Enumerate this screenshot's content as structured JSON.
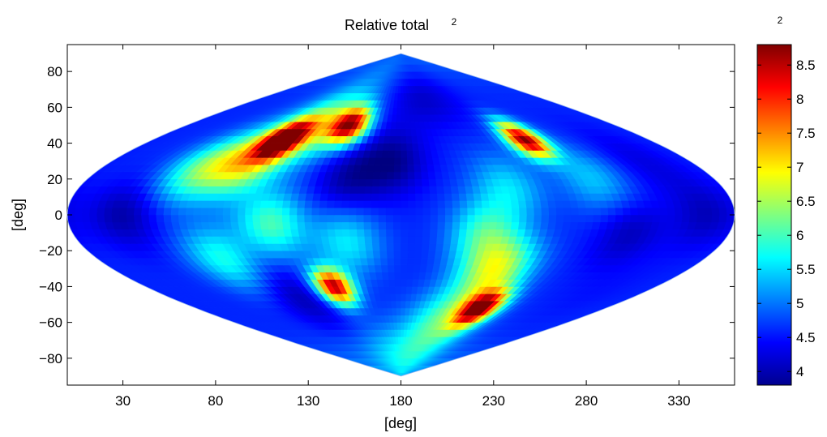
{
  "chart_data": {
    "type": "heatmap",
    "title": "Relative total",
    "title_superscript": "2",
    "colorbar_label": "2",
    "xlabel": "[deg]",
    "ylabel": "[deg]",
    "projection": "sinusoidal",
    "colormap": "jet",
    "xlim": [
      0,
      360
    ],
    "ylim": [
      -95,
      95
    ],
    "color_range": [
      3.8,
      8.8
    ],
    "xticks": [
      30,
      80,
      130,
      180,
      230,
      280,
      330
    ],
    "xtick_labels": [
      "30",
      "80",
      "130",
      "180",
      "230",
      "280",
      "330"
    ],
    "yticks": [
      80,
      60,
      40,
      20,
      0,
      -20,
      -40,
      -60,
      -80
    ],
    "ytick_labels": [
      "80",
      "60",
      "40",
      "20",
      "0",
      "−20",
      "−40",
      "−60",
      "−80"
    ],
    "cbar_ticks": [
      8.5,
      8,
      7.5,
      7,
      6.5,
      6,
      5.5,
      5,
      4.5,
      4
    ],
    "cbar_tick_labels": [
      "8.5",
      "8",
      "7.5",
      "7",
      "6.5",
      "6",
      "5.5",
      "5",
      "4.5",
      "4"
    ],
    "base_value": 4.6,
    "features": [
      {
        "lon": 95,
        "lat": 42,
        "value": 8.3
      },
      {
        "lon": 138,
        "lat": 50,
        "value": 8.2
      },
      {
        "lon": 85,
        "lat": 30,
        "value": 6.8
      },
      {
        "lon": 112,
        "lat": 50,
        "value": 6.5
      },
      {
        "lon": 60,
        "lat": 25,
        "value": 6.0
      },
      {
        "lon": 270,
        "lat": 42,
        "value": 8.7
      },
      {
        "lon": 133,
        "lat": -40,
        "value": 8.6
      },
      {
        "lon": 250,
        "lat": -52,
        "value": 8.4
      },
      {
        "lon": 240,
        "lat": -30,
        "value": 6.6
      },
      {
        "lon": 225,
        "lat": -58,
        "value": 6.0
      },
      {
        "lon": 225,
        "lat": -10,
        "value": 5.8
      },
      {
        "lon": 75,
        "lat": -25,
        "value": 5.8
      },
      {
        "lon": 110,
        "lat": -5,
        "value": 6.0
      },
      {
        "lon": 150,
        "lat": -15,
        "value": 5.6
      },
      {
        "lon": 240,
        "lat": 15,
        "value": 5.5
      },
      {
        "lon": 290,
        "lat": 20,
        "value": 5.4
      },
      {
        "lon": 175,
        "lat": 30,
        "value": 3.9
      },
      {
        "lon": 150,
        "lat": 20,
        "value": 4.0
      },
      {
        "lon": 325,
        "lat": -40,
        "value": 4.5
      },
      {
        "lon": 30,
        "lat": 0,
        "value": 4.0
      },
      {
        "lon": 205,
        "lat": 70,
        "value": 3.9
      },
      {
        "lon": 100,
        "lat": -45,
        "value": 4.0
      },
      {
        "lon": 305,
        "lat": -10,
        "value": 4.1
      },
      {
        "lon": 180,
        "lat": -80,
        "value": 5.6
      },
      {
        "lon": 180,
        "lat": 82,
        "value": 5.2
      },
      {
        "lon": 345,
        "lat": 0,
        "value": 4.1
      },
      {
        "lon": 330,
        "lat": 30,
        "value": 4.3
      }
    ]
  }
}
